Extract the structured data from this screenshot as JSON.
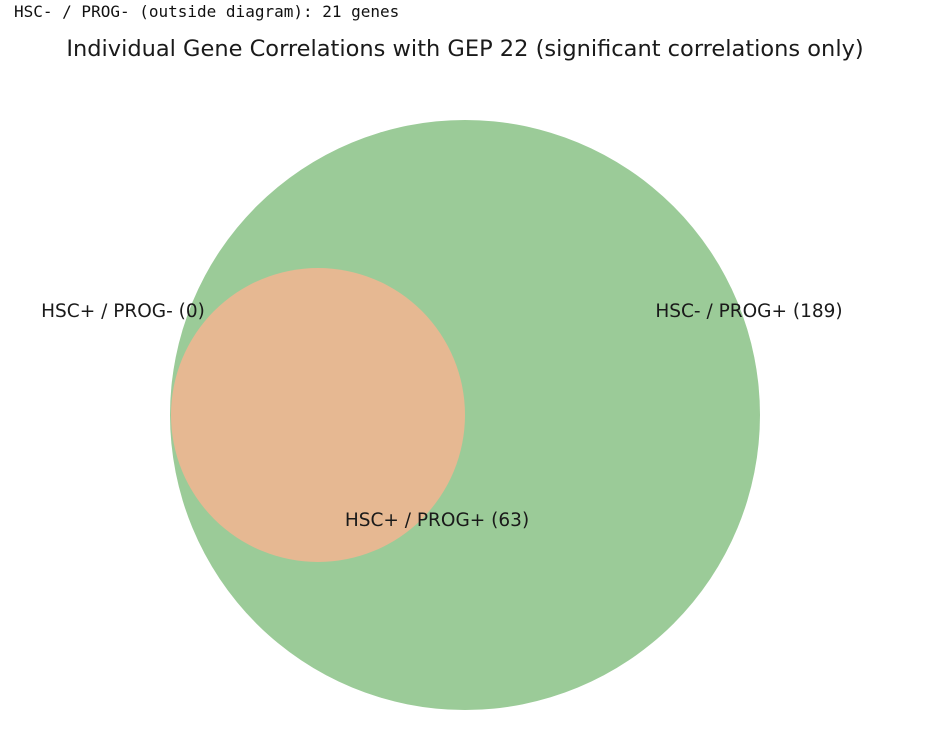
{
  "console": {
    "output_line": "HSC- / PROG- (outside diagram): 21 genes"
  },
  "diagram": {
    "title": "Individual Gene Correlations with GEP 22 (significant correlations only)",
    "sets": [
      {
        "name": "HSC+",
        "color": "#e6b892"
      },
      {
        "name": "PROG+",
        "color": "#9bcb98"
      }
    ],
    "regions": {
      "hsc_only_label": "HSC+ / PROG- (0)",
      "prog_only_label": "HSC- / PROG+ (189)",
      "both_label": "HSC+ / PROG+ (63)"
    },
    "counts": {
      "hsc_only": 0,
      "prog_only": 189,
      "both": 63,
      "neither": 21
    }
  }
}
